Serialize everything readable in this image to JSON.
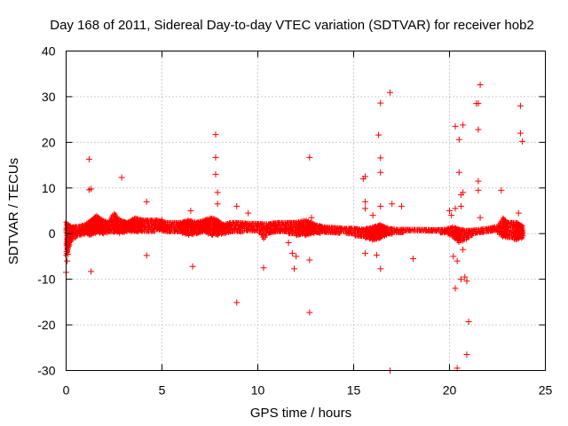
{
  "chart_data": {
    "type": "scatter",
    "title": "Day 168 of 2011, Sidereal Day-to-day VTEC variation (SDTVAR) for receiver hob2",
    "xlabel": "GPS time / hours",
    "ylabel": "SDTVAR / TECUs",
    "xlim": [
      0,
      25
    ],
    "ylim": [
      -30,
      40
    ],
    "xticks": [
      0,
      5,
      10,
      15,
      20,
      25
    ],
    "yticks": [
      -30,
      -20,
      -10,
      0,
      10,
      20,
      30,
      40
    ],
    "grid": true,
    "marker": "+",
    "marker_color": "#ff0000",
    "series": [
      {
        "name": "hob2",
        "band": [
          [
            0.0,
            -5,
            2.5
          ],
          [
            0.1,
            -4,
            2
          ],
          [
            0.2,
            -2.5,
            1.8
          ],
          [
            0.3,
            -1.5,
            1.5
          ],
          [
            0.5,
            -1,
            1.6
          ],
          [
            0.8,
            -0.5,
            1.8
          ],
          [
            1.0,
            -0.3,
            2
          ],
          [
            1.3,
            -0.5,
            3
          ],
          [
            1.6,
            0,
            4
          ],
          [
            1.9,
            -0.2,
            3
          ],
          [
            2.2,
            0,
            2.5
          ],
          [
            2.5,
            0.2,
            4.5
          ],
          [
            2.8,
            0,
            3
          ],
          [
            3.2,
            0.2,
            2.5
          ],
          [
            3.6,
            0.3,
            3.5
          ],
          [
            4.0,
            0.2,
            3
          ],
          [
            4.4,
            0.3,
            3
          ],
          [
            4.8,
            0.5,
            3
          ],
          [
            5.2,
            0.3,
            2.5
          ],
          [
            5.6,
            0,
            2.5
          ],
          [
            6.0,
            0,
            2.5
          ],
          [
            6.4,
            -0.5,
            3
          ],
          [
            6.8,
            -0.2,
            2.5
          ],
          [
            7.2,
            0.2,
            3
          ],
          [
            7.6,
            -0.5,
            3.5
          ],
          [
            7.9,
            -0.5,
            3
          ],
          [
            8.2,
            -0.2,
            2
          ],
          [
            8.6,
            0,
            2.5
          ],
          [
            9.0,
            0,
            2.5
          ],
          [
            9.5,
            0.5,
            2.3
          ],
          [
            10.0,
            0.5,
            2.3
          ],
          [
            10.3,
            -1.5,
            2.2
          ],
          [
            10.6,
            0,
            2.2
          ],
          [
            11.0,
            0,
            2.5
          ],
          [
            11.5,
            0,
            2.5
          ],
          [
            12.0,
            -0.5,
            2.5
          ],
          [
            12.5,
            -0.5,
            3
          ],
          [
            13.0,
            0,
            2
          ],
          [
            13.5,
            0,
            1.5
          ],
          [
            14.0,
            0,
            1.4
          ],
          [
            14.5,
            0,
            1.2
          ],
          [
            15.0,
            -0.5,
            1.2
          ],
          [
            15.5,
            -1,
            1
          ],
          [
            16.0,
            -1.5,
            1.5
          ],
          [
            16.4,
            -1,
            2
          ],
          [
            16.8,
            -0.5,
            1.2
          ],
          [
            17.2,
            0,
            1
          ],
          [
            17.8,
            0.2,
            1
          ],
          [
            18.5,
            0.3,
            1
          ],
          [
            19.2,
            0.2,
            0.9
          ],
          [
            19.8,
            0,
            1
          ],
          [
            20.2,
            -1,
            1.5
          ],
          [
            20.5,
            -2,
            1
          ],
          [
            20.8,
            -1.5,
            0.8
          ],
          [
            21.2,
            -0.5,
            0.8
          ],
          [
            21.6,
            0,
            1
          ],
          [
            22.0,
            0.3,
            1.2
          ],
          [
            22.5,
            0.3,
            1.6
          ],
          [
            22.8,
            -1,
            3.5
          ],
          [
            23.0,
            -1,
            2.5
          ],
          [
            23.5,
            -1.5,
            2.5
          ],
          [
            23.9,
            -1,
            1.5
          ]
        ],
        "outliers": [
          [
            0.0,
            -8.5
          ],
          [
            0.05,
            -6
          ],
          [
            0.1,
            -4.5
          ],
          [
            1.2,
            16.3
          ],
          [
            1.2,
            9.6
          ],
          [
            1.3,
            9.8
          ],
          [
            1.3,
            -8.3
          ],
          [
            1.5,
            3.5
          ],
          [
            2.9,
            12.3
          ],
          [
            4.2,
            7
          ],
          [
            4.2,
            -4.8
          ],
          [
            5.0,
            3
          ],
          [
            6.5,
            5
          ],
          [
            6.6,
            -7.2
          ],
          [
            7.8,
            21.7
          ],
          [
            7.8,
            16.7
          ],
          [
            7.8,
            13
          ],
          [
            7.9,
            9
          ],
          [
            7.9,
            6.5
          ],
          [
            8.9,
            6
          ],
          [
            8.9,
            -15.1
          ],
          [
            9.5,
            4.5
          ],
          [
            10.3,
            -7.5
          ],
          [
            11.6,
            -2
          ],
          [
            11.8,
            -4.3
          ],
          [
            11.9,
            -7.7
          ],
          [
            12.0,
            -5
          ],
          [
            12.7,
            16.7
          ],
          [
            12.7,
            -5.8
          ],
          [
            12.7,
            -17.3
          ],
          [
            12.8,
            3.5
          ],
          [
            15.5,
            12
          ],
          [
            15.6,
            12.5
          ],
          [
            15.6,
            7
          ],
          [
            15.6,
            5.5
          ],
          [
            15.6,
            -4.3
          ],
          [
            16.0,
            4
          ],
          [
            16.3,
            21.6
          ],
          [
            16.4,
            28.6
          ],
          [
            16.4,
            16.6
          ],
          [
            16.4,
            13.4
          ],
          [
            16.4,
            6
          ],
          [
            16.4,
            -7.7
          ],
          [
            16.9,
            30.9
          ],
          [
            16.9,
            -30
          ],
          [
            17.0,
            6.5
          ],
          [
            17.5,
            6
          ],
          [
            18.1,
            -5.5
          ],
          [
            20.3,
            23.5
          ],
          [
            20.3,
            5.5
          ],
          [
            20.3,
            -12
          ],
          [
            20.5,
            20.6
          ],
          [
            20.5,
            13.4
          ],
          [
            20.6,
            8.5
          ],
          [
            20.6,
            6
          ],
          [
            20.6,
            -10
          ],
          [
            20.7,
            23.8
          ],
          [
            20.7,
            9
          ],
          [
            20.8,
            -9.5
          ],
          [
            20.9,
            -10.4
          ],
          [
            20.9,
            -26.5
          ],
          [
            21.0,
            -19.3
          ],
          [
            21.4,
            28.5
          ],
          [
            21.5,
            28.5
          ],
          [
            21.5,
            22.8
          ],
          [
            21.5,
            11.5
          ],
          [
            21.5,
            9.5
          ],
          [
            21.6,
            32.6
          ],
          [
            21.6,
            3.5
          ],
          [
            20.4,
            -29.5
          ],
          [
            22.7,
            9.5
          ],
          [
            23.6,
            4.5
          ],
          [
            23.7,
            28
          ],
          [
            23.7,
            22
          ],
          [
            23.8,
            20.2
          ],
          [
            20.0,
            5
          ],
          [
            20.1,
            4
          ],
          [
            20.2,
            -5
          ],
          [
            20.4,
            -6
          ],
          [
            20.7,
            -3.5
          ],
          [
            16.2,
            -4.7
          ]
        ]
      }
    ]
  }
}
